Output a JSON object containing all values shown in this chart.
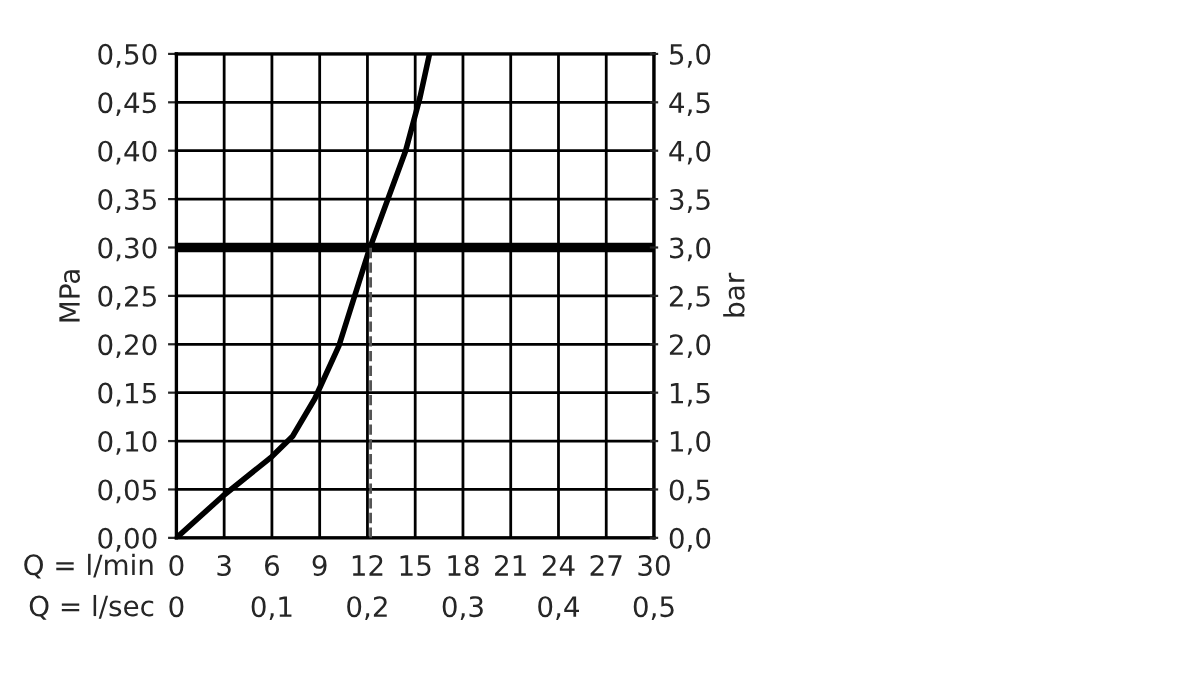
{
  "chart_data": {
    "type": "line",
    "xlabel": "Q = l/min",
    "x2label": "Q = l/sec",
    "ylabel": "MPa",
    "y2label": "bar",
    "x": [
      0,
      2.9,
      6.0,
      7.3,
      8.7,
      10.2,
      12.1,
      14.4,
      15.3,
      15.9
    ],
    "series": [
      {
        "color": "#000000",
        "values": [
          0,
          0.043,
          0.084,
          0.105,
          0.144,
          0.198,
          0.297,
          0.4,
          0.455,
          0.5
        ]
      }
    ],
    "xlim": [
      0,
      30
    ],
    "xticks": [
      0,
      3,
      6,
      9,
      12,
      15,
      18,
      21,
      24,
      27,
      30
    ],
    "x2lim": [
      0,
      0.5
    ],
    "x2ticks": [
      0,
      {
        "value": 0.1,
        "label": "0,1"
      },
      {
        "value": 0.2,
        "label": "0,2"
      },
      {
        "value": 0.3,
        "label": "0,3"
      },
      {
        "value": 0.4,
        "label": "0,4"
      },
      {
        "value": 0.5,
        "label": "0,5"
      }
    ],
    "ylim": [
      0,
      0.5
    ],
    "yticks": [
      {
        "value": 0,
        "label": "0,00"
      },
      {
        "value": 0.05,
        "label": "0,05"
      },
      {
        "value": 0.1,
        "label": "0,10"
      },
      {
        "value": 0.15,
        "label": "0,15"
      },
      {
        "value": 0.2,
        "label": "0,20"
      },
      {
        "value": 0.25,
        "label": "0,25"
      },
      {
        "value": 0.3,
        "label": "0,30"
      },
      {
        "value": 0.35,
        "label": "0,35"
      },
      {
        "value": 0.4,
        "label": "0,40"
      },
      {
        "value": 0.45,
        "label": "0,45"
      },
      {
        "value": 0.5,
        "label": "0,50"
      }
    ],
    "y2lim": [
      0,
      5
    ],
    "y2ticks": [
      {
        "value": 0,
        "label": "0,0"
      },
      {
        "value": 0.5,
        "label": "0,5"
      },
      {
        "value": 1,
        "label": "1,0"
      },
      {
        "value": 1.5,
        "label": "1,5"
      },
      {
        "value": 2,
        "label": "2,0"
      },
      {
        "value": 2.5,
        "label": "2,5"
      },
      {
        "value": 3,
        "label": "3,0"
      },
      {
        "value": 3.5,
        "label": "3,5"
      },
      {
        "value": 4,
        "label": "4,0"
      },
      {
        "value": 4.5,
        "label": "4,5"
      },
      {
        "value": 5,
        "label": "5,0"
      }
    ],
    "ref_lines": [
      {
        "axis": "y",
        "value": 0.3,
        "color": "#000000",
        "line_style": "solid"
      },
      {
        "axis": "x",
        "value": 12.2,
        "color": "#555555",
        "line_style": "dashed"
      }
    ],
    "grid": true,
    "legend": false,
    "marker": "none",
    "line_style": "solid"
  }
}
